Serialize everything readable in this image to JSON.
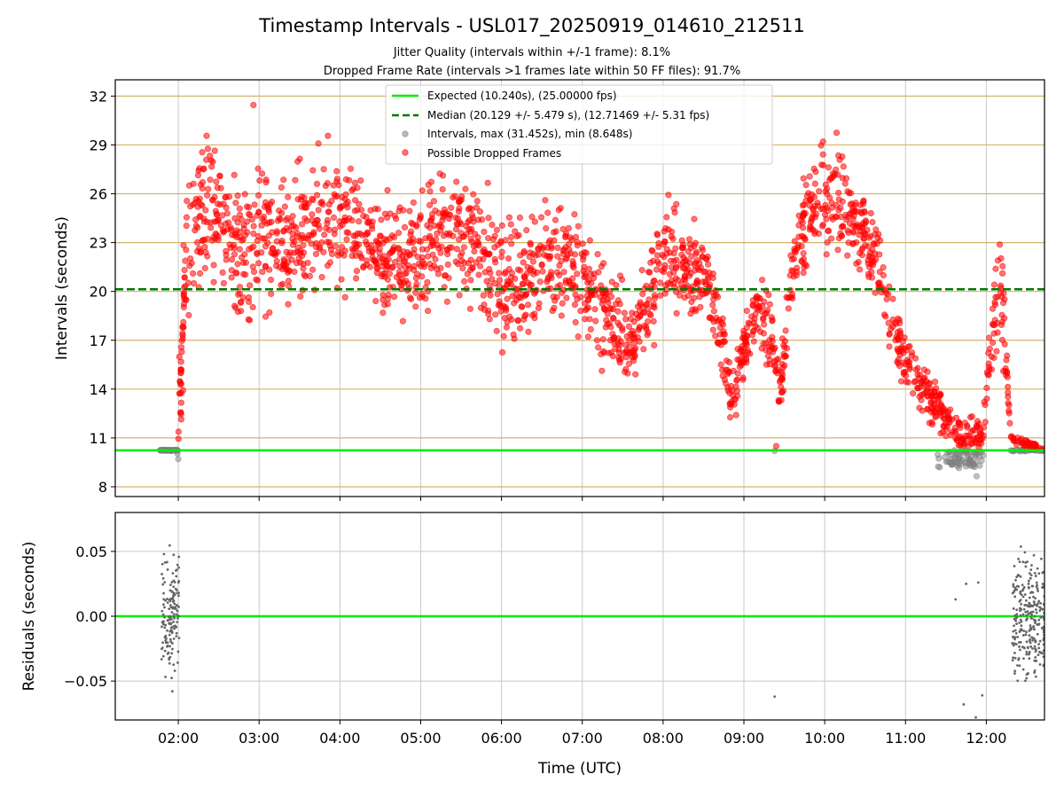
{
  "chart_data": {
    "title": "Timestamp Intervals - USL017_20250919_014610_212511",
    "subtitle_1": "Jitter Quality (intervals within +/-1 frame): 8.1%",
    "subtitle_2": "Dropped Frame Rate (intervals >1 frames late within 50 FF files): 91.7%",
    "xlabel": "Time (UTC)",
    "x_ticks": [
      "02:00",
      "03:00",
      "04:00",
      "05:00",
      "06:00",
      "07:00",
      "08:00",
      "09:00",
      "10:00",
      "11:00",
      "12:00"
    ],
    "xlim_hours": [
      1.22,
      12.72
    ],
    "top": {
      "type": "scatter",
      "ylabel": "Intervals (seconds)",
      "ylim": [
        7.4,
        33.0
      ],
      "y_ticks": [
        "8",
        "11",
        "14",
        "17",
        "20",
        "23",
        "26",
        "29",
        "32"
      ],
      "expected": 10.24,
      "median": 20.129,
      "legend": {
        "expected": "Expected (10.240s), (25.00000 fps)",
        "median": "Median (20.129 +/- 5.479 s), (12.71469 +/- 5.31 fps)",
        "intervals": "Intervals, max (31.452s), min (8.648s)",
        "dropped": "Possible Dropped Frames"
      },
      "max_interval": 31.452,
      "min_interval": 8.648,
      "trend": [
        [
          1.78,
          10.24
        ],
        [
          1.98,
          10.3
        ],
        [
          2.0,
          11.0
        ],
        [
          2.05,
          16
        ],
        [
          2.1,
          22.5
        ],
        [
          2.3,
          25
        ],
        [
          2.5,
          25
        ],
        [
          2.65,
          23
        ],
        [
          2.9,
          22
        ],
        [
          3.0,
          24
        ],
        [
          3.2,
          23
        ],
        [
          3.5,
          23
        ],
        [
          3.7,
          25
        ],
        [
          3.95,
          25
        ],
        [
          4.2,
          24
        ],
        [
          4.5,
          22
        ],
        [
          4.8,
          21.5
        ],
        [
          5.0,
          22.5
        ],
        [
          5.2,
          23
        ],
        [
          5.5,
          23.5
        ],
        [
          5.7,
          23
        ],
        [
          5.9,
          21
        ],
        [
          6.2,
          20.5
        ],
        [
          6.5,
          21.5
        ],
        [
          6.8,
          22
        ],
        [
          7.0,
          20.5
        ],
        [
          7.3,
          18.5
        ],
        [
          7.6,
          16.5
        ],
        [
          7.8,
          19
        ],
        [
          8.0,
          22
        ],
        [
          8.3,
          21.5
        ],
        [
          8.55,
          21
        ],
        [
          8.7,
          17.5
        ],
        [
          8.85,
          13
        ],
        [
          9.0,
          16.5
        ],
        [
          9.2,
          19
        ],
        [
          9.35,
          17
        ],
        [
          9.45,
          13.5
        ],
        [
          9.6,
          21
        ],
        [
          9.8,
          25
        ],
        [
          10.0,
          26
        ],
        [
          10.3,
          25
        ],
        [
          10.55,
          23
        ],
        [
          10.75,
          19.5
        ],
        [
          10.95,
          16
        ],
        [
          11.1,
          15
        ],
        [
          11.3,
          13.5
        ],
        [
          11.5,
          12.5
        ],
        [
          11.7,
          11
        ],
        [
          11.95,
          11
        ],
        [
          12.05,
          16
        ],
        [
          12.18,
          21
        ],
        [
          12.3,
          11
        ],
        [
          12.72,
          10.3
        ]
      ],
      "spread": [
        [
          1.7,
          0.1
        ],
        [
          2.05,
          3
        ],
        [
          2.2,
          2.8
        ],
        [
          3.0,
          2.8
        ],
        [
          4.0,
          2.6
        ],
        [
          5.0,
          2.4
        ],
        [
          6.0,
          2.4
        ],
        [
          7.0,
          2.2
        ],
        [
          7.7,
          1.6
        ],
        [
          8.0,
          2.2
        ],
        [
          8.6,
          1.8
        ],
        [
          8.85,
          1.0
        ],
        [
          9.2,
          1.8
        ],
        [
          9.45,
          1.2
        ],
        [
          10.0,
          2.2
        ],
        [
          10.6,
          1.6
        ],
        [
          11.0,
          1.2
        ],
        [
          11.5,
          0.9
        ],
        [
          11.95,
          0.8
        ],
        [
          12.2,
          2.5
        ],
        [
          12.3,
          0.2
        ],
        [
          12.72,
          0.1
        ]
      ]
    },
    "bottom": {
      "type": "scatter",
      "ylabel": "Residuals (seconds)",
      "ylim": [
        -0.08,
        0.08
      ],
      "y_ticks": [
        "0.05",
        "0.00",
        "−0.05"
      ],
      "clusters": [
        {
          "start": 1.79,
          "end": 2.01,
          "n": 150,
          "sd": 0.03
        },
        {
          "start": 12.32,
          "end": 12.72,
          "n": 260,
          "sd": 0.033
        }
      ],
      "outliers": [
        [
          9.38,
          -0.062
        ],
        [
          11.62,
          0.013
        ],
        [
          11.72,
          -0.068
        ],
        [
          11.75,
          0.025
        ],
        [
          11.9,
          0.026
        ],
        [
          11.95,
          -0.061
        ],
        [
          11.87,
          -0.078
        ]
      ]
    },
    "colors": {
      "expected": "#00ee00",
      "median": "#007800",
      "intervals": "#808080",
      "dropped": "#ff0000",
      "hgrid_top": "#d4b46e",
      "grid": "#c8c8c8"
    }
  }
}
